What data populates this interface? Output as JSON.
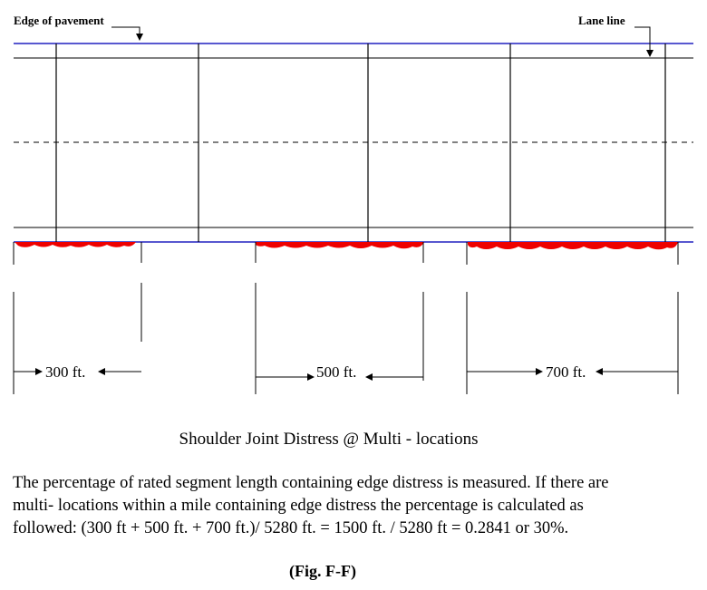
{
  "labels": {
    "edge_of_pavement": "Edge of pavement",
    "lane_line": "Lane line"
  },
  "measurements": [
    {
      "label": "300 ft."
    },
    {
      "label": "500 ft."
    },
    {
      "label": "700 ft."
    }
  ],
  "caption": "Shoulder Joint Distress @ Multi - locations",
  "paragraph_lines": [
    "The percentage of rated segment length containing edge distress is measured. If there are",
    "multi- locations within a mile containing edge distress the percentage is calculated as",
    "followed: (300 ft + 500 ft. + 700 ft.)/ 5280 ft. = 1500 ft. / 5280 ft = 0.2841 or 30%."
  ],
  "figure_label": "(Fig. F-F)",
  "colors": {
    "edge_line": "#2020c0",
    "distress": "#ee0000",
    "ink": "#000000"
  }
}
